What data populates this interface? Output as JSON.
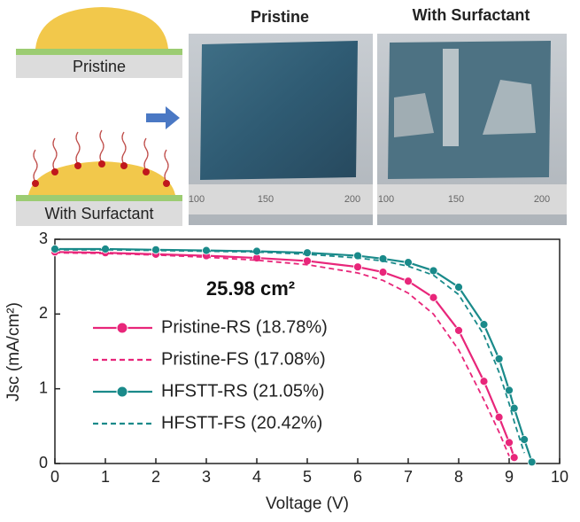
{
  "figure": {
    "schematic_labels": [
      "Pristine",
      "With Surfactant"
    ],
    "photo_titles": [
      "Pristine",
      "With Surfactant"
    ],
    "ruler_labels": [
      "100",
      "150",
      "200"
    ]
  },
  "chart_data": {
    "type": "line",
    "annotation": "25.98 cm²",
    "x_label": "Voltage (V)",
    "y_label": "Jsc (mA/cm²)",
    "x": [
      0,
      1,
      2,
      3,
      4,
      5,
      6,
      6.5,
      7,
      7.5,
      8,
      8.5,
      8.8,
      9,
      9.1,
      9.3,
      9.45
    ],
    "series": [
      {
        "name": "Pristine-RS (18.78%)",
        "color": "#e8267a",
        "dash": false,
        "markers": true,
        "values": [
          2.83,
          2.82,
          2.8,
          2.78,
          2.75,
          2.71,
          2.63,
          2.56,
          2.44,
          2.22,
          1.78,
          1.1,
          0.62,
          0.28,
          0.08,
          null,
          null
        ]
      },
      {
        "name": "Pristine-FS (17.08%)",
        "color": "#e8267a",
        "dash": true,
        "markers": false,
        "values": [
          2.82,
          2.81,
          2.79,
          2.76,
          2.72,
          2.66,
          2.55,
          2.45,
          2.28,
          2.0,
          1.52,
          0.85,
          0.42,
          0.1,
          null,
          null,
          null
        ]
      },
      {
        "name": "HFSTT-RS (21.05%)",
        "color": "#1a8a8a",
        "dash": false,
        "markers": true,
        "values": [
          2.87,
          2.87,
          2.86,
          2.85,
          2.84,
          2.82,
          2.78,
          2.74,
          2.69,
          2.58,
          2.36,
          1.86,
          1.4,
          0.98,
          0.74,
          0.32,
          0.02
        ]
      },
      {
        "name": "HFSTT-FS (20.42%)",
        "color": "#1a8a8a",
        "dash": true,
        "markers": false,
        "values": [
          2.86,
          2.86,
          2.85,
          2.84,
          2.83,
          2.8,
          2.75,
          2.71,
          2.64,
          2.52,
          2.26,
          1.72,
          1.22,
          0.8,
          0.56,
          0.14,
          null
        ]
      }
    ],
    "xlim": [
      0,
      10
    ],
    "xticks": [
      0,
      1,
      2,
      3,
      4,
      5,
      6,
      7,
      8,
      9,
      10
    ],
    "ylim": [
      0,
      3
    ],
    "yticks": [
      0,
      1,
      2,
      3
    ]
  }
}
